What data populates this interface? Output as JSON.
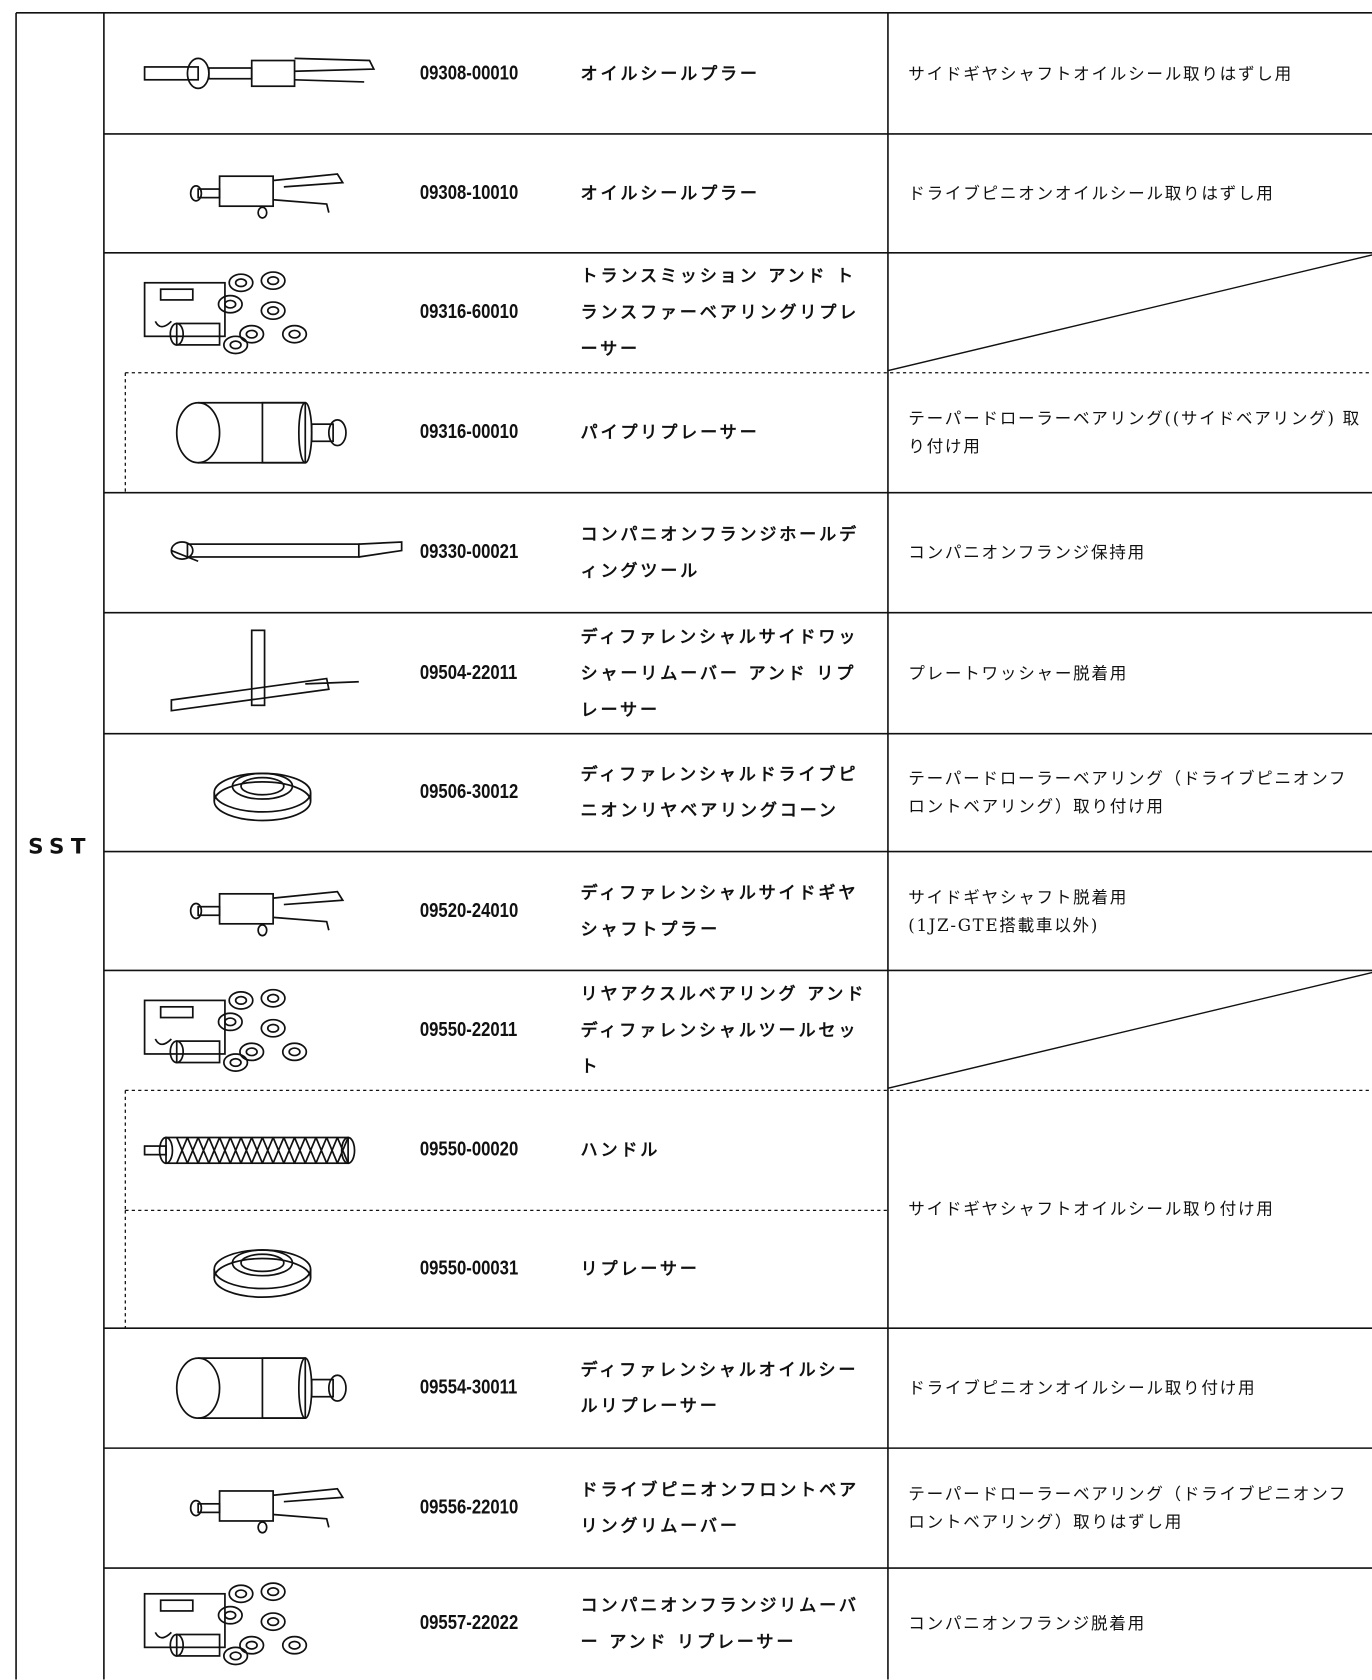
{
  "label": "SST",
  "rows": [
    {
      "part_no": "09308-00010",
      "name": "オイルシールプラー",
      "description": "サイドギヤシャフトオイルシール取りはずし用"
    },
    {
      "part_no": "09308-10010",
      "name": "オイルシールプラー",
      "description": "ドライブピニオンオイルシール取りはずし用"
    },
    {
      "part_no": "09316-60010",
      "name": "トランスミッション アンド トランスファーベアリングリプレーサー"
    },
    {
      "part_no": "09316-00010",
      "name": "パイプリプレーサー",
      "description": "テーパードローラーベアリング((サイドベアリング) 取り付け用"
    },
    {
      "part_no": "09330-00021",
      "name": "コンパニオンフランジホールディングツール",
      "description": "コンパニオンフランジ保持用"
    },
    {
      "part_no": "09504-22011",
      "name": "ディファレンシャルサイドワッシャーリムーバー アンド リプレーサー",
      "description": "プレートワッシャー脱着用"
    },
    {
      "part_no": "09506-30012",
      "name": "ディファレンシャルドライブピニオンリヤベアリングコーン",
      "description": "テーパードローラーベアリング（ドライブピニオンフロントベアリング）取り付け用"
    },
    {
      "part_no": "09520-24010",
      "name": "ディファレンシャルサイドギヤシャフトプラー",
      "description": "サイドギヤシャフト脱着用\n(1JZ-GTE搭載車以外)"
    },
    {
      "part_no": "09550-22011",
      "name": "リヤアクスルベアリング アンド ディファレンシャルツールセット"
    },
    {
      "part_no": "09550-00020",
      "name": "ハンドル",
      "description": "サイドギヤシャフトオイルシール取り付け用"
    },
    {
      "part_no": "09550-00031",
      "name": "リプレーサー"
    },
    {
      "part_no": "09554-30011",
      "name": "ディファレンシャルオイルシールリプレーサー",
      "description": "ドライブピニオンオイルシール取り付け用"
    },
    {
      "part_no": "09556-22010",
      "name": "ドライブピニオンフロントベアリングリムーバー",
      "description": "テーパードローラーベアリング（ドライブピニオンフロントベアリング）取りはずし用"
    },
    {
      "part_no": "09557-22022",
      "name": "コンパニオンフランジリムーバー アンド リプレーサー",
      "description": "コンパニオンフランジ脱着用"
    }
  ]
}
